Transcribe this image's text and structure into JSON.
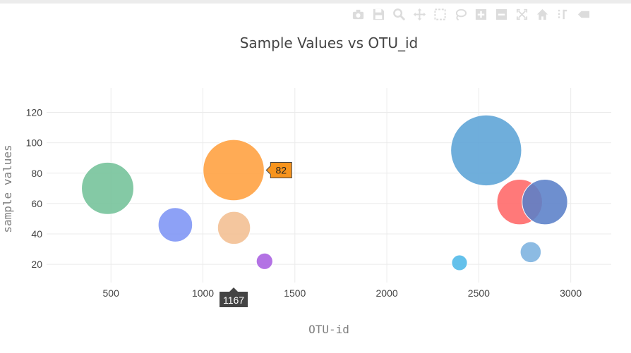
{
  "modebar": {
    "buttons": [
      {
        "name": "camera-icon",
        "title": "Download plot as a png"
      },
      {
        "name": "save-icon",
        "title": "Save"
      },
      {
        "name": "zoom-icon",
        "title": "Zoom"
      },
      {
        "name": "pan-icon",
        "title": "Pan"
      },
      {
        "name": "box-select-icon",
        "title": "Box Select"
      },
      {
        "name": "lasso-select-icon",
        "title": "Lasso Select"
      },
      {
        "name": "zoom-in-icon",
        "title": "Zoom in"
      },
      {
        "name": "zoom-out-icon",
        "title": "Zoom out"
      },
      {
        "name": "autoscale-icon",
        "title": "Autoscale"
      },
      {
        "name": "home-icon",
        "title": "Reset axes"
      },
      {
        "name": "spike-lines-icon",
        "title": "Toggle Spike Lines"
      },
      {
        "name": "hover-label-icon",
        "title": "Show closest data on hover"
      }
    ],
    "icon_color": "#dcdcdc"
  },
  "chart_data": {
    "type": "scatter",
    "title": "Sample Values vs OTU_id",
    "xlabel": "OTU-id",
    "ylabel": "sample values",
    "xlim": [
      150,
      3220
    ],
    "ylim": [
      8,
      136
    ],
    "xticks": [
      500,
      1000,
      1500,
      2000,
      2500,
      3000
    ],
    "yticks": [
      20,
      40,
      60,
      80,
      100,
      120
    ],
    "grid": true,
    "points": [
      {
        "x": 2540,
        "y": 95,
        "size": 95,
        "color": "#5ba3d6"
      },
      {
        "x": 1167,
        "y": 82,
        "size": 82,
        "color": "#ff9f3d"
      },
      {
        "x": 482,
        "y": 70,
        "size": 70,
        "color": "#73c299"
      },
      {
        "x": 2722,
        "y": 61,
        "size": 61,
        "color": "#ff6666"
      },
      {
        "x": 2859,
        "y": 61,
        "size": 61,
        "color": "#5a7fc8"
      },
      {
        "x": 850,
        "y": 46,
        "size": 46,
        "color": "#7d94f5"
      },
      {
        "x": 1169,
        "y": 44,
        "size": 44,
        "color": "#f2be91"
      },
      {
        "x": 2782,
        "y": 28,
        "size": 28,
        "color": "#7cb2df"
      },
      {
        "x": 1335,
        "y": 22,
        "size": 22,
        "color": "#a95ee0"
      },
      {
        "x": 2395,
        "y": 21,
        "size": 21,
        "color": "#4fb8e8"
      }
    ],
    "hover": {
      "x_label": "1167",
      "y_label": "82",
      "y_color": "#f7941d",
      "x_color": "#444444"
    }
  }
}
